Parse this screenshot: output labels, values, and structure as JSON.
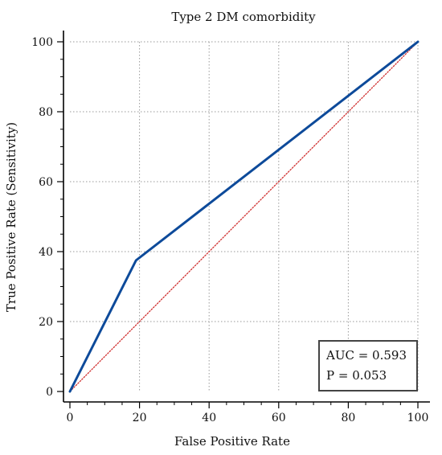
{
  "chart_data": {
    "type": "line",
    "title": "Type 2 DM comorbidity",
    "xlabel": "False Positive Rate",
    "ylabel": "True Positive Rate (Sensitivity)",
    "xlim": [
      0,
      100
    ],
    "ylim": [
      0,
      100
    ],
    "xticks": [
      0,
      20,
      40,
      60,
      80,
      100
    ],
    "yticks": [
      0,
      20,
      40,
      60,
      80,
      100
    ],
    "grid": true,
    "series": [
      {
        "color": "#0d4a9a",
        "style": "solid",
        "x": [
          0,
          19,
          100
        ],
        "y": [
          0,
          37.5,
          100
        ]
      },
      {
        "color": "#d03030",
        "style": "dotted",
        "x": [
          0,
          100
        ],
        "y": [
          0,
          100
        ]
      }
    ],
    "annotations": {
      "auc": "AUC = 0.593",
      "p": "P = 0.053"
    }
  }
}
